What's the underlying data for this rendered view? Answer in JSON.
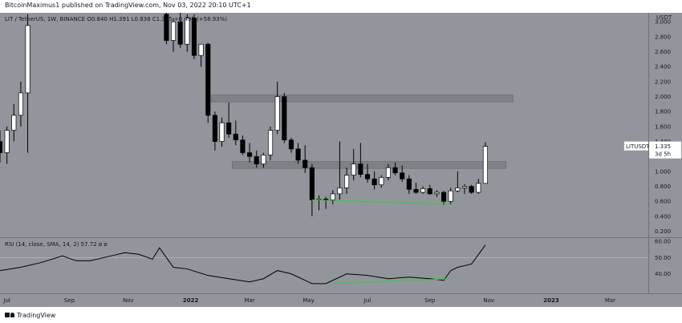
{
  "header": {
    "text": "BitcoinMaximus1 published on TradingView.com, Nov 03, 2022 20:10 UTC+1"
  },
  "footer": {
    "brand": "TradingView"
  },
  "colors": {
    "background": "#93959c",
    "candle_up": "#ffffff",
    "candle_down": "#000000",
    "zone": "#7f8187",
    "support_line": "#2ecc40",
    "rsi_line": "#000000"
  },
  "chart_data": [
    {
      "type": "candlestick",
      "legend": "LIT / TetherUS, 1W, BINANCE  O0.840  H1.391  L0.838  C1.335  +0.495 (+58.93%)",
      "currency": "USDT",
      "ylim": [
        0.12,
        3.12
      ],
      "yticks": [
        "3.000",
        "2.800",
        "2.600",
        "2.400",
        "2.200",
        "2.000",
        "1.800",
        "1.600",
        "1.400",
        "1.200",
        "1.000",
        "0.800",
        "0.600",
        "0.400",
        "0.200"
      ],
      "xticks": [
        {
          "label": "Jul",
          "week": 1
        },
        {
          "label": "Sep",
          "week": 10
        },
        {
          "label": "Nov",
          "week": 18.5
        },
        {
          "label": "2022",
          "week": 27.5
        },
        {
          "label": "Mar",
          "week": 36
        },
        {
          "label": "May",
          "week": 44.5
        },
        {
          "label": "Jul",
          "week": 53
        },
        {
          "label": "Sep",
          "week": 62
        },
        {
          "label": "Nov",
          "week": 70.5
        },
        {
          "label": "2023",
          "week": 79.5
        },
        {
          "label": "Mar",
          "week": 88
        }
      ],
      "xlim": [
        0,
        93.5
      ],
      "price_label": {
        "symbol": "LITUSDT",
        "value": "1.335",
        "countdown": "3d 5h"
      },
      "zones": [
        {
          "from_week": 30.5,
          "to_week": 74,
          "low": 1.93,
          "high": 2.02
        },
        {
          "from_week": 33.5,
          "to_week": 73,
          "low": 1.04,
          "high": 1.13
        }
      ],
      "support_line": {
        "start_week": 45,
        "start_value": 0.62,
        "end_week": 65,
        "end_value": 0.56
      },
      "candles": [
        {
          "w": 0,
          "o": 1.4,
          "h": 1.55,
          "l": 1.12,
          "c": 1.25
        },
        {
          "w": 1,
          "o": 1.25,
          "h": 1.6,
          "l": 1.1,
          "c": 1.55
        },
        {
          "w": 2,
          "o": 1.55,
          "h": 1.9,
          "l": 1.4,
          "c": 1.75
        },
        {
          "w": 3,
          "o": 1.75,
          "h": 2.2,
          "l": 1.6,
          "c": 2.05
        },
        {
          "w": 4,
          "o": 2.05,
          "h": 3.1,
          "l": 1.25,
          "c": 2.95
        },
        {
          "w": 24,
          "o": 3.1,
          "h": 3.15,
          "l": 2.7,
          "c": 2.75
        },
        {
          "w": 25,
          "o": 2.75,
          "h": 3.05,
          "l": 2.6,
          "c": 3.0
        },
        {
          "w": 26,
          "o": 3.0,
          "h": 3.15,
          "l": 2.65,
          "c": 2.7
        },
        {
          "w": 27,
          "o": 2.7,
          "h": 3.1,
          "l": 2.6,
          "c": 3.05
        },
        {
          "w": 28,
          "o": 3.05,
          "h": 3.1,
          "l": 2.5,
          "c": 2.55
        },
        {
          "w": 29,
          "o": 2.55,
          "h": 2.7,
          "l": 2.4,
          "c": 2.7
        },
        {
          "w": 30,
          "o": 2.7,
          "h": 2.72,
          "l": 1.65,
          "c": 1.75
        },
        {
          "w": 31,
          "o": 1.75,
          "h": 1.8,
          "l": 1.28,
          "c": 1.4
        },
        {
          "w": 32,
          "o": 1.4,
          "h": 1.72,
          "l": 1.33,
          "c": 1.65
        },
        {
          "w": 33,
          "o": 1.65,
          "h": 1.92,
          "l": 1.45,
          "c": 1.5
        },
        {
          "w": 34,
          "o": 1.5,
          "h": 1.68,
          "l": 1.35,
          "c": 1.42
        },
        {
          "w": 35,
          "o": 1.42,
          "h": 1.48,
          "l": 1.22,
          "c": 1.25
        },
        {
          "w": 36,
          "o": 1.25,
          "h": 1.38,
          "l": 1.12,
          "c": 1.2
        },
        {
          "w": 37,
          "o": 1.2,
          "h": 1.28,
          "l": 1.05,
          "c": 1.1
        },
        {
          "w": 38,
          "o": 1.1,
          "h": 1.25,
          "l": 1.05,
          "c": 1.22
        },
        {
          "w": 39,
          "o": 1.22,
          "h": 1.6,
          "l": 1.15,
          "c": 1.55
        },
        {
          "w": 40,
          "o": 1.55,
          "h": 2.2,
          "l": 1.5,
          "c": 2.0
        },
        {
          "w": 41,
          "o": 2.0,
          "h": 2.05,
          "l": 1.38,
          "c": 1.42
        },
        {
          "w": 42,
          "o": 1.42,
          "h": 1.45,
          "l": 1.25,
          "c": 1.3
        },
        {
          "w": 43,
          "o": 1.3,
          "h": 1.38,
          "l": 1.1,
          "c": 1.15
        },
        {
          "w": 44,
          "o": 1.15,
          "h": 1.35,
          "l": 0.98,
          "c": 1.05
        },
        {
          "w": 45,
          "o": 1.05,
          "h": 1.1,
          "l": 0.4,
          "c": 0.62
        },
        {
          "w": 46,
          "o": 0.62,
          "h": 0.68,
          "l": 0.48,
          "c": 0.63
        },
        {
          "w": 47,
          "o": 0.63,
          "h": 0.66,
          "l": 0.5,
          "c": 0.62
        },
        {
          "w": 48,
          "o": 0.62,
          "h": 0.75,
          "l": 0.56,
          "c": 0.7
        },
        {
          "w": 49,
          "o": 0.7,
          "h": 1.4,
          "l": 0.62,
          "c": 0.78
        },
        {
          "w": 50,
          "o": 0.78,
          "h": 1.05,
          "l": 0.7,
          "c": 0.95
        },
        {
          "w": 51,
          "o": 0.95,
          "h": 1.3,
          "l": 0.88,
          "c": 1.1
        },
        {
          "w": 52,
          "o": 1.1,
          "h": 1.38,
          "l": 0.92,
          "c": 0.96
        },
        {
          "w": 53,
          "o": 0.96,
          "h": 1.1,
          "l": 0.85,
          "c": 0.9
        },
        {
          "w": 54,
          "o": 0.9,
          "h": 1.0,
          "l": 0.76,
          "c": 0.82
        },
        {
          "w": 55,
          "o": 0.82,
          "h": 0.95,
          "l": 0.78,
          "c": 0.92
        },
        {
          "w": 56,
          "o": 0.92,
          "h": 1.1,
          "l": 0.88,
          "c": 1.05
        },
        {
          "w": 57,
          "o": 1.05,
          "h": 1.12,
          "l": 0.95,
          "c": 0.98
        },
        {
          "w": 58,
          "o": 0.98,
          "h": 1.08,
          "l": 0.86,
          "c": 0.9
        },
        {
          "w": 59,
          "o": 0.9,
          "h": 0.95,
          "l": 0.7,
          "c": 0.76
        },
        {
          "w": 60,
          "o": 0.76,
          "h": 0.85,
          "l": 0.7,
          "c": 0.72
        },
        {
          "w": 61,
          "o": 0.72,
          "h": 0.8,
          "l": 0.7,
          "c": 0.77
        },
        {
          "w": 62,
          "o": 0.77,
          "h": 0.82,
          "l": 0.69,
          "c": 0.7
        },
        {
          "w": 63,
          "o": 0.7,
          "h": 0.75,
          "l": 0.66,
          "c": 0.72
        },
        {
          "w": 64,
          "o": 0.72,
          "h": 0.74,
          "l": 0.55,
          "c": 0.6
        },
        {
          "w": 65,
          "o": 0.6,
          "h": 0.78,
          "l": 0.56,
          "c": 0.74
        },
        {
          "w": 66,
          "o": 0.74,
          "h": 1.0,
          "l": 0.72,
          "c": 0.78
        },
        {
          "w": 67,
          "o": 0.78,
          "h": 0.83,
          "l": 0.7,
          "c": 0.8
        },
        {
          "w": 68,
          "o": 0.8,
          "h": 0.82,
          "l": 0.7,
          "c": 0.72
        },
        {
          "w": 69,
          "o": 0.72,
          "h": 0.9,
          "l": 0.7,
          "c": 0.84
        },
        {
          "w": 70,
          "o": 0.84,
          "h": 1.391,
          "l": 0.838,
          "c": 1.335
        }
      ]
    },
    {
      "type": "line",
      "legend": "RSI (14, close, SMA, 14, 2)  57.72  ø  ø",
      "ylim": [
        28,
        62
      ],
      "yticks": [
        {
          "label": "60.00",
          "value": 60
        },
        {
          "label": "50.00",
          "value": 50
        },
        {
          "label": "40.00",
          "value": 40
        }
      ],
      "band_line": 50,
      "series": [
        {
          "x": [
            0,
            3,
            6,
            9,
            11,
            13,
            16,
            18,
            20,
            22,
            23,
            25,
            27,
            30,
            33,
            36,
            38,
            40,
            42,
            45,
            47,
            48,
            50,
            53,
            56,
            59,
            62,
            64,
            65,
            66,
            68,
            70
          ],
          "values": [
            42,
            44,
            47,
            51,
            48,
            48,
            51,
            53,
            52,
            49,
            56,
            44,
            43,
            39,
            37,
            35,
            37,
            42,
            40,
            34,
            34,
            36,
            40,
            39,
            37,
            38,
            37,
            36,
            42,
            44,
            46,
            57.72
          ]
        }
      ],
      "support_line": {
        "start_week": 48,
        "start_value": 34,
        "end_week": 65,
        "end_value": 37
      }
    }
  ]
}
